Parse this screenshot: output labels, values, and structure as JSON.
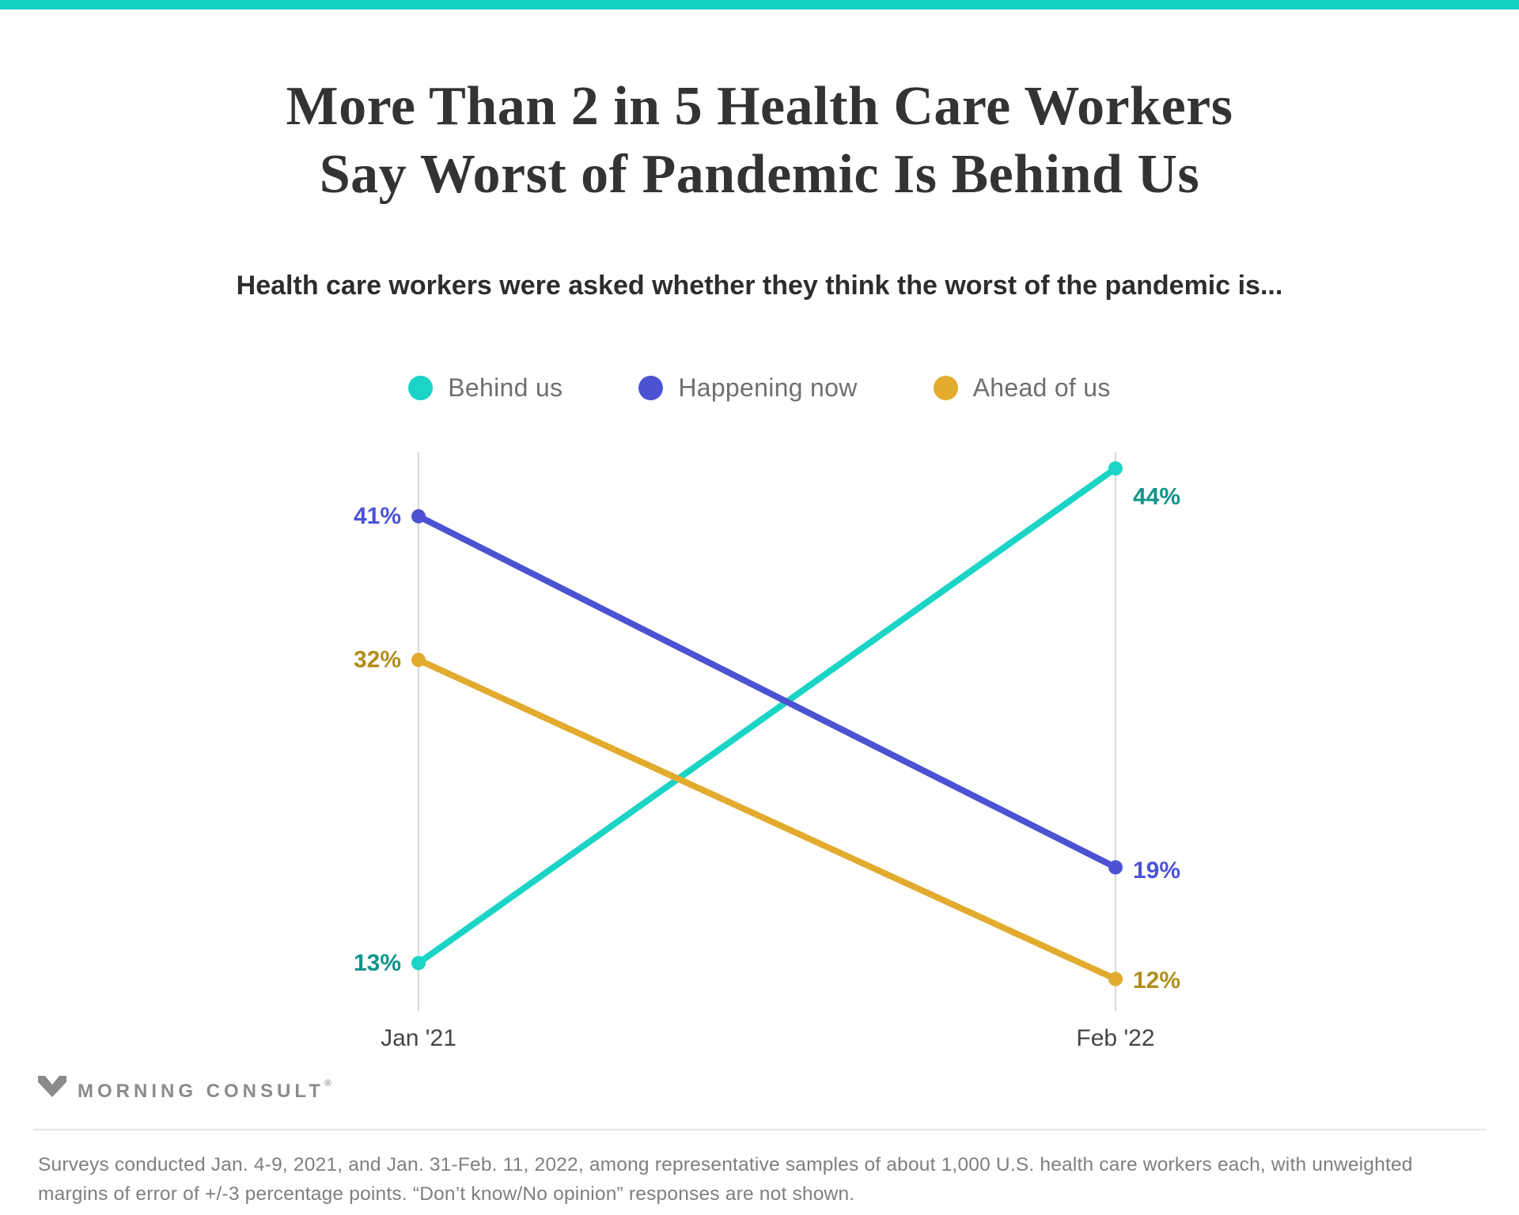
{
  "page": {
    "accent_bar_color": "#12d2c4",
    "background_color": "#ffffff"
  },
  "header": {
    "title_line1": "More Than 2 in 5 Health Care Workers",
    "title_line2": "Say Worst of Pandemic Is Behind Us",
    "subtitle": "Health care workers were asked whether they think the worst of the pandemic is..."
  },
  "legend": {
    "items": [
      {
        "label": "Behind us",
        "color": "#1bd4c5"
      },
      {
        "label": "Happening now",
        "color": "#4b53d2"
      },
      {
        "label": "Ahead of us",
        "color": "#e2ab2d"
      }
    ]
  },
  "chart_data": {
    "type": "line",
    "categories": [
      "Jan '21",
      "Feb '22"
    ],
    "series": [
      {
        "name": "Behind us",
        "values": [
          13,
          44
        ],
        "color": "#1bd4c5",
        "label_color": "#0f948a"
      },
      {
        "name": "Happening now",
        "values": [
          41,
          19
        ],
        "color": "#4b53d2",
        "label_color": "#4b53d9"
      },
      {
        "name": "Ahead of us",
        "values": [
          32,
          12
        ],
        "color": "#e2ab2d",
        "label_color": "#b18d1d"
      }
    ],
    "value_suffix": "%",
    "ylim": [
      10,
      45
    ],
    "layout": {
      "grid": false,
      "legend_position": "top",
      "axis_color": "#d9d9d9",
      "tick_label_color": "#454545",
      "draw_order": [
        "Behind us",
        "Ahead of us",
        "Happening now"
      ],
      "right_label_dy": {
        "Behind us": 36,
        "Happening now": 4,
        "Ahead of us": 2
      }
    }
  },
  "footer": {
    "logo_text": "MORNING CONSULT",
    "logo_reg_mark": "®",
    "note": "Surveys conducted Jan. 4-9, 2021, and Jan. 31-Feb. 11, 2022, among representative samples of about 1,000 U.S. health care workers each, with unweighted margins of error of +/-3 percentage points. “Don’t know/No opinion” responses are not shown."
  }
}
